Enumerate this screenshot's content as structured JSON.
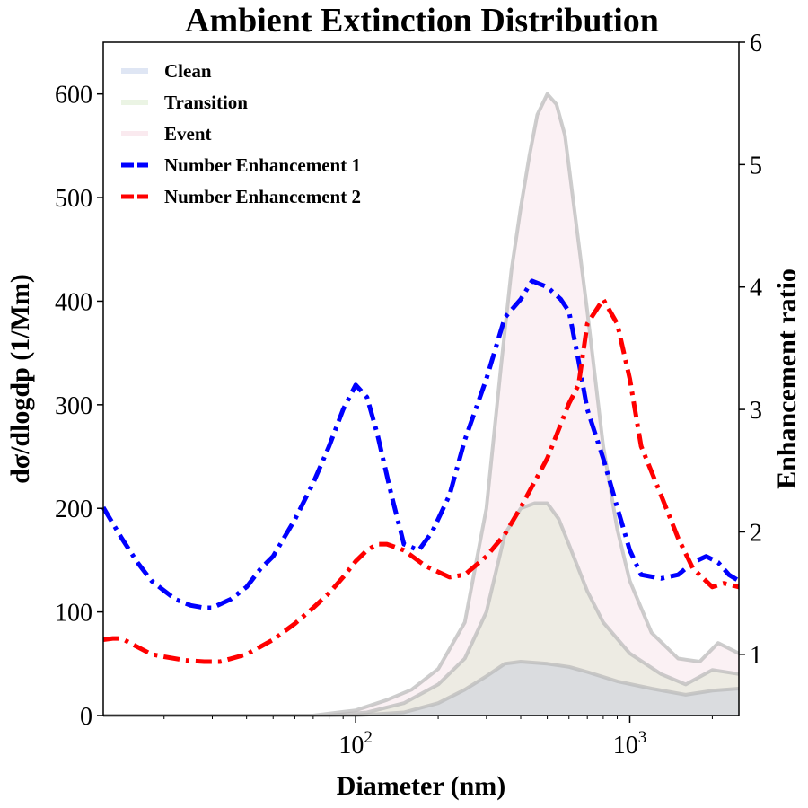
{
  "chart_data": {
    "type": "area",
    "title": "Ambient Extinction Distribution",
    "xlabel": "Diameter (nm)",
    "ylabel": "dσ/dlogdp (1/Mm)",
    "ylabel_right": "Enhancement ratio",
    "xscale": "log",
    "xlim": [
      12,
      2500
    ],
    "ylim": [
      0,
      650
    ],
    "ylim_right": [
      0.5,
      6
    ],
    "yticks": [
      0,
      100,
      200,
      300,
      400,
      500,
      600
    ],
    "yticks_right": [
      1,
      2,
      3,
      4,
      5,
      6
    ],
    "xticks": [
      {
        "base": "10",
        "exp": "2",
        "value": 100
      },
      {
        "base": "10",
        "exp": "3",
        "value": 1000
      }
    ],
    "legend_position": "top-left",
    "grid": false,
    "series": [
      {
        "name": "Clean",
        "kind": "area",
        "axis": "left",
        "color": "#4f72c4",
        "x": [
          12,
          100,
          150,
          200,
          250,
          300,
          350,
          400,
          500,
          600,
          700,
          900,
          1200,
          1600,
          2000,
          2500
        ],
        "y": [
          0,
          0,
          3,
          12,
          25,
          38,
          50,
          52,
          50,
          47,
          42,
          33,
          26,
          20,
          24,
          26
        ]
      },
      {
        "name": "Transition",
        "kind": "area",
        "axis": "left",
        "color": "#8ec26a",
        "x": [
          12,
          80,
          110,
          150,
          200,
          250,
          300,
          350,
          400,
          450,
          500,
          550,
          600,
          700,
          800,
          1000,
          1300,
          1600,
          2000,
          2500
        ],
        "y": [
          0,
          0,
          3,
          12,
          30,
          55,
          100,
          175,
          200,
          205,
          205,
          190,
          165,
          120,
          90,
          60,
          40,
          30,
          44,
          40
        ]
      },
      {
        "name": "Event",
        "kind": "area",
        "axis": "left",
        "color": "#e18aa6",
        "x": [
          12,
          70,
          100,
          130,
          160,
          200,
          250,
          300,
          340,
          370,
          400,
          430,
          460,
          500,
          540,
          580,
          620,
          700,
          800,
          900,
          1000,
          1200,
          1500,
          1800,
          2100,
          2500
        ],
        "y": [
          0,
          0,
          5,
          15,
          25,
          45,
          90,
          200,
          340,
          430,
          490,
          540,
          580,
          600,
          590,
          560,
          500,
          390,
          260,
          180,
          130,
          80,
          55,
          52,
          70,
          60
        ]
      },
      {
        "name": "Number Enhancement 1",
        "kind": "line",
        "axis": "right",
        "color": "#0000ff",
        "x": [
          12,
          14,
          16,
          18,
          20,
          22,
          25,
          28,
          30,
          35,
          40,
          45,
          50,
          60,
          70,
          80,
          90,
          100,
          110,
          120,
          135,
          150,
          170,
          190,
          220,
          250,
          300,
          350,
          400,
          440,
          500,
          560,
          600,
          650,
          700,
          800,
          900,
          1000,
          1100,
          1300,
          1500,
          1700,
          1900,
          2100,
          2300,
          2500
        ],
        "y": [
          2.2,
          1.95,
          1.75,
          1.6,
          1.52,
          1.45,
          1.4,
          1.38,
          1.38,
          1.45,
          1.55,
          1.7,
          1.8,
          2.1,
          2.4,
          2.7,
          3.0,
          3.2,
          3.1,
          2.8,
          2.3,
          1.9,
          1.85,
          2.0,
          2.3,
          2.75,
          3.25,
          3.75,
          3.9,
          4.05,
          4.0,
          3.9,
          3.8,
          3.4,
          3.0,
          2.6,
          2.2,
          1.85,
          1.65,
          1.62,
          1.65,
          1.75,
          1.8,
          1.75,
          1.65,
          1.6
        ]
      },
      {
        "name": "Number Enhancement 2",
        "kind": "line",
        "axis": "right",
        "color": "#ff0000",
        "x": [
          12,
          13,
          14,
          16,
          18,
          20,
          24,
          28,
          32,
          40,
          50,
          60,
          70,
          80,
          90,
          100,
          110,
          120,
          130,
          150,
          180,
          220,
          250,
          300,
          350,
          400,
          500,
          600,
          650,
          700,
          800,
          900,
          1000,
          1100,
          1300,
          1500,
          1700,
          2000,
          2200,
          2500
        ],
        "y": [
          1.12,
          1.13,
          1.13,
          1.06,
          1.0,
          0.98,
          0.95,
          0.94,
          0.94,
          1.0,
          1.12,
          1.25,
          1.38,
          1.5,
          1.63,
          1.76,
          1.85,
          1.9,
          1.9,
          1.85,
          1.72,
          1.63,
          1.65,
          1.8,
          1.98,
          2.2,
          2.6,
          3.05,
          3.2,
          3.7,
          3.9,
          3.7,
          3.25,
          2.7,
          2.3,
          1.95,
          1.7,
          1.55,
          1.58,
          1.55
        ]
      }
    ]
  }
}
